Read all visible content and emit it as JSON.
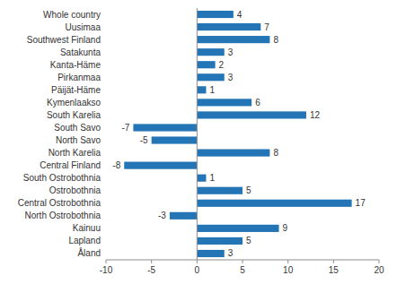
{
  "chart_data": {
    "type": "bar",
    "orientation": "horizontal",
    "categories": [
      "Whole country",
      "Uusimaa",
      "Southwest Finland",
      "Satakunta",
      "Kanta-Häme",
      "Pirkanmaa",
      "Päijät-Häme",
      "Kymenlaakso",
      "South Karelia",
      "South Savo",
      "North Savo",
      "North Karelia",
      "Central Finland",
      "South Ostrobothnia",
      "Ostrobothnia",
      "Central Ostrobothnia",
      "North Ostrobothnia",
      "Kainuu",
      "Lapland",
      "Åland"
    ],
    "values": [
      4,
      7,
      8,
      3,
      2,
      3,
      1,
      6,
      12,
      -7,
      -5,
      8,
      -8,
      1,
      5,
      17,
      -3,
      9,
      5,
      3
    ],
    "color": "#2475b5",
    "xlim": [
      -10,
      20
    ],
    "xticks": [
      -10,
      -5,
      0,
      5,
      10,
      15,
      20
    ],
    "data_labels": true,
    "grid": false
  }
}
